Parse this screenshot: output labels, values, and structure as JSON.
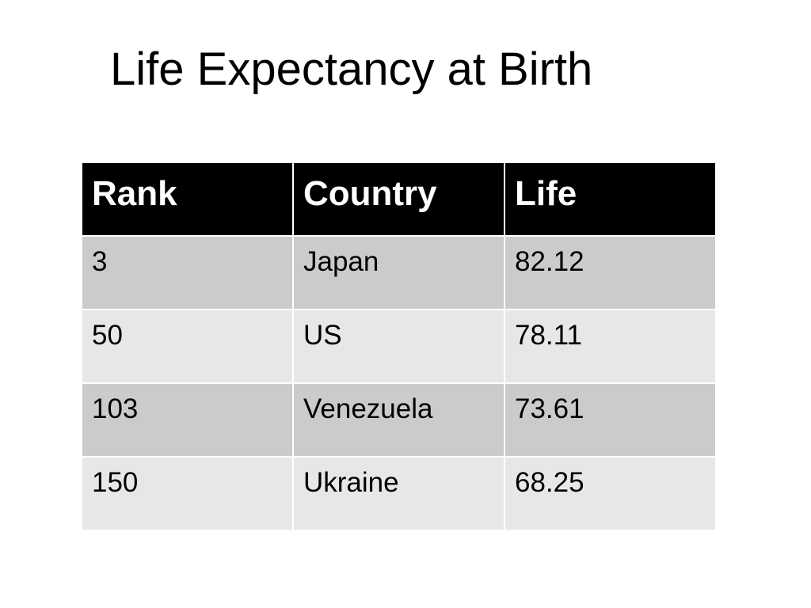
{
  "title": "Life Expectancy at Birth",
  "table": {
    "headers": [
      "Rank",
      "Country",
      "Life"
    ],
    "rows": [
      [
        "3",
        "Japan",
        "82.12"
      ],
      [
        "50",
        "US",
        "78.11"
      ],
      [
        "103",
        "Venezuela",
        "73.61"
      ],
      [
        "150",
        "Ukraine",
        "68.25"
      ]
    ]
  },
  "colors": {
    "header_background": "#000000",
    "header_text": "#ffffff",
    "row_odd": "#cbcbcb",
    "row_even": "#e7e7e7"
  }
}
